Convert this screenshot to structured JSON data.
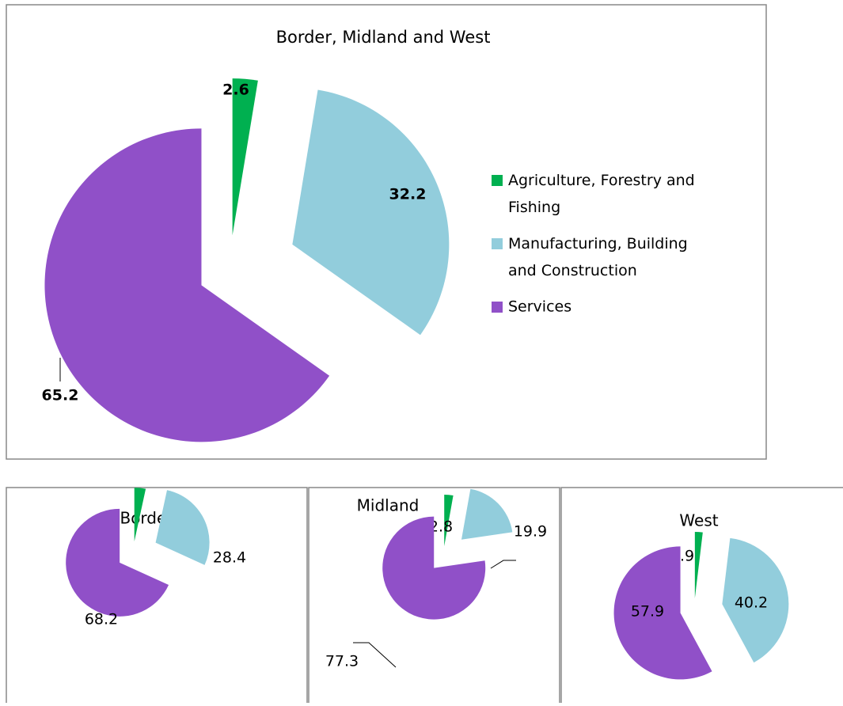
{
  "chart_data": [
    {
      "type": "pie",
      "title": "Border, Midland and West",
      "categories": [
        "Agriculture, Forestry and Fishing",
        "Manufacturing, Building and Construction",
        "Services"
      ],
      "values": [
        2.6,
        32.2,
        65.2
      ],
      "colors": [
        "#00b050",
        "#92cddc",
        "#9050c8"
      ],
      "legend": "right",
      "bold_labels": true
    },
    {
      "type": "pie",
      "title": "Border",
      "values": [
        3.4,
        28.4,
        68.2
      ],
      "colors": [
        "#00b050",
        "#92cddc",
        "#9050c8"
      ]
    },
    {
      "type": "pie",
      "title": "Midland",
      "values": [
        2.8,
        19.9,
        77.3
      ],
      "colors": [
        "#00b050",
        "#92cddc",
        "#9050c8"
      ]
    },
    {
      "type": "pie",
      "title": "West",
      "values": [
        1.9,
        40.2,
        57.9
      ],
      "colors": [
        "#00b050",
        "#92cddc",
        "#9050c8"
      ]
    }
  ]
}
